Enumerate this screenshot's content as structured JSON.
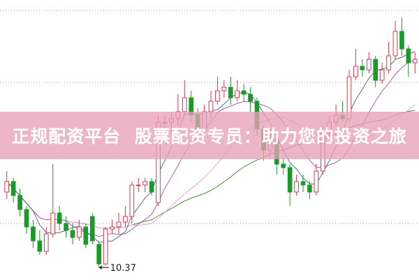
{
  "banner": {
    "text": "正规配资平台  股票配资专员：助力您的投资之旅"
  },
  "chart_data": {
    "type": "candlestick",
    "title": "",
    "grid": true,
    "colors": {
      "up": "#d9364f",
      "down": "#1a9a2a",
      "ma5": "#55707f",
      "ma10": "#b05ab8",
      "ma20": "#f0a0e0",
      "ma60": "#4a8a3a"
    },
    "annotations": [
      {
        "label": "10.37",
        "type": "low-marker"
      }
    ],
    "candles_ohlc_order": "open, close, high, low",
    "candles": [
      [
        11.45,
        11.6,
        11.75,
        11.35
      ],
      [
        11.6,
        11.4,
        11.65,
        11.3
      ],
      [
        11.4,
        11.2,
        11.5,
        11.1
      ],
      [
        11.2,
        10.95,
        11.25,
        10.85
      ],
      [
        10.95,
        10.75,
        11.05,
        10.65
      ],
      [
        10.75,
        10.6,
        10.9,
        10.55
      ],
      [
        10.6,
        10.85,
        10.95,
        10.55
      ],
      [
        10.85,
        11.15,
        11.85,
        10.8
      ],
      [
        11.15,
        11.0,
        11.25,
        10.9
      ],
      [
        11.0,
        10.9,
        11.1,
        10.8
      ],
      [
        10.9,
        10.8,
        11.0,
        10.7
      ],
      [
        10.8,
        10.95,
        11.05,
        10.75
      ],
      [
        10.95,
        10.7,
        11.0,
        10.65
      ],
      [
        11.1,
        10.75,
        11.15,
        10.7
      ],
      [
        10.7,
        10.42,
        10.75,
        10.37
      ],
      [
        10.42,
        10.92,
        10.95,
        10.4
      ],
      [
        10.92,
        10.95,
        11.05,
        10.85
      ],
      [
        10.95,
        11.02,
        11.15,
        10.85
      ],
      [
        11.02,
        11.1,
        11.25,
        10.95
      ],
      [
        11.1,
        11.55,
        11.6,
        11.0
      ],
      [
        11.55,
        11.55,
        11.65,
        11.45
      ],
      [
        11.55,
        11.6,
        11.65,
        11.45
      ],
      [
        11.6,
        11.45,
        11.65,
        11.4
      ],
      [
        11.3,
        12.45,
        12.55,
        11.25
      ],
      [
        12.45,
        12.45,
        12.55,
        12.35
      ],
      [
        12.45,
        12.5,
        12.6,
        12.3
      ],
      [
        12.5,
        12.6,
        12.85,
        12.4
      ],
      [
        12.6,
        12.8,
        13.05,
        12.55
      ],
      [
        12.8,
        12.55,
        12.9,
        12.45
      ],
      [
        12.55,
        12.35,
        12.65,
        12.3
      ],
      [
        12.35,
        12.6,
        12.7,
        12.3
      ],
      [
        12.6,
        12.75,
        12.9,
        12.5
      ],
      [
        12.75,
        12.9,
        13.1,
        12.7
      ],
      [
        12.9,
        12.95,
        13.05,
        12.8
      ],
      [
        12.95,
        12.8,
        13.1,
        12.7
      ],
      [
        12.8,
        12.9,
        13.05,
        12.75
      ],
      [
        12.9,
        12.85,
        13.0,
        12.75
      ],
      [
        12.85,
        12.75,
        12.95,
        12.6
      ],
      [
        12.75,
        12.35,
        12.8,
        12.25
      ],
      [
        12.35,
        12.05,
        12.4,
        11.9
      ],
      [
        12.05,
        12.2,
        12.35,
        11.95
      ],
      [
        12.2,
        11.85,
        12.25,
        11.7
      ],
      [
        11.85,
        11.8,
        11.95,
        11.7
      ],
      [
        11.8,
        11.45,
        11.85,
        11.25
      ],
      [
        11.45,
        11.6,
        11.7,
        11.4
      ],
      [
        11.6,
        11.55,
        11.7,
        11.45
      ],
      [
        11.55,
        11.45,
        11.6,
        11.35
      ],
      [
        11.45,
        11.75,
        11.85,
        11.4
      ],
      [
        11.75,
        12.3,
        12.4,
        11.7
      ],
      [
        12.3,
        12.45,
        12.55,
        12.25
      ],
      [
        12.45,
        12.55,
        12.7,
        12.4
      ],
      [
        12.55,
        12.5,
        12.75,
        12.45
      ],
      [
        12.5,
        13.1,
        13.2,
        12.45
      ],
      [
        13.1,
        13.25,
        13.5,
        13.05
      ],
      [
        13.25,
        13.2,
        13.35,
        13.1
      ],
      [
        13.2,
        13.35,
        13.45,
        13.15
      ],
      [
        13.35,
        13.05,
        13.4,
        12.95
      ],
      [
        13.05,
        13.2,
        13.3,
        13.0
      ],
      [
        13.2,
        13.4,
        13.6,
        13.15
      ],
      [
        13.4,
        13.75,
        13.9,
        13.35
      ],
      [
        13.75,
        13.5,
        13.95,
        13.4
      ],
      [
        13.5,
        13.3,
        13.55,
        13.1
      ],
      [
        13.3,
        13.35,
        13.45,
        13.15
      ]
    ]
  }
}
